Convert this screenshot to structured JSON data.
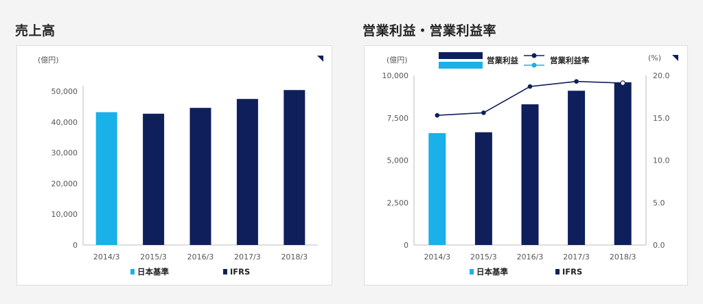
{
  "sales": {
    "section_title": "売上高",
    "chart_data": {
      "type": "bar",
      "title": "売上高",
      "unit_label": "(億円)",
      "categories": [
        "2014/3",
        "2015/3",
        "2016/3",
        "2017/3",
        "2018/3"
      ],
      "series": [
        {
          "name": "日本基準",
          "values": [
            43200,
            null,
            null,
            null,
            null
          ],
          "color": "#1ab0e8"
        },
        {
          "name": "IFRS",
          "values": [
            null,
            42700,
            44600,
            47500,
            50400
          ],
          "color": "#0f1f5c"
        }
      ],
      "ylim": [
        0,
        50000
      ],
      "yticks": [
        0,
        10000,
        20000,
        30000,
        40000,
        50000
      ],
      "ytick_labels": [
        "0",
        "10,000",
        "20,000",
        "30,000",
        "40,000",
        "50,000"
      ],
      "grid": false,
      "legend_position": "bottom"
    }
  },
  "profit": {
    "section_title": "営業利益・営業利益率",
    "chart_data": {
      "type": "bar+line",
      "title": "営業利益・営業利益率",
      "left_unit_label": "(億円)",
      "right_unit_label": "(%)",
      "categories": [
        "2014/3",
        "2015/3",
        "2016/3",
        "2017/3",
        "2018/3"
      ],
      "bar_series": [
        {
          "name": "日本基準",
          "values": [
            6600,
            null,
            null,
            null,
            null
          ],
          "color": "#1ab0e8"
        },
        {
          "name": "IFRS",
          "values": [
            null,
            6650,
            8300,
            9100,
            9600
          ],
          "color": "#0f1f5c"
        }
      ],
      "line_series": {
        "name": "営業利益率",
        "values": [
          15.3,
          15.6,
          18.7,
          19.3,
          19.1
        ],
        "color": "#0f1f5c"
      },
      "top_legend": [
        {
          "label": "営業利益",
          "kind": "bar"
        },
        {
          "label": "営業利益率",
          "kind": "line"
        }
      ],
      "ylim_left": [
        0,
        10000
      ],
      "yticks_left": [
        0,
        2500,
        5000,
        7500,
        10000
      ],
      "ytick_labels_left": [
        "0",
        "2,500",
        "5,000",
        "7,500",
        "10,000"
      ],
      "ylim_right": [
        0,
        20
      ],
      "yticks_right": [
        0,
        5,
        10,
        15,
        20
      ],
      "ytick_labels_right": [
        "0.0",
        "5.0",
        "10.0",
        "15.0",
        "20.0"
      ],
      "grid": false,
      "legend_position": "bottom"
    }
  }
}
